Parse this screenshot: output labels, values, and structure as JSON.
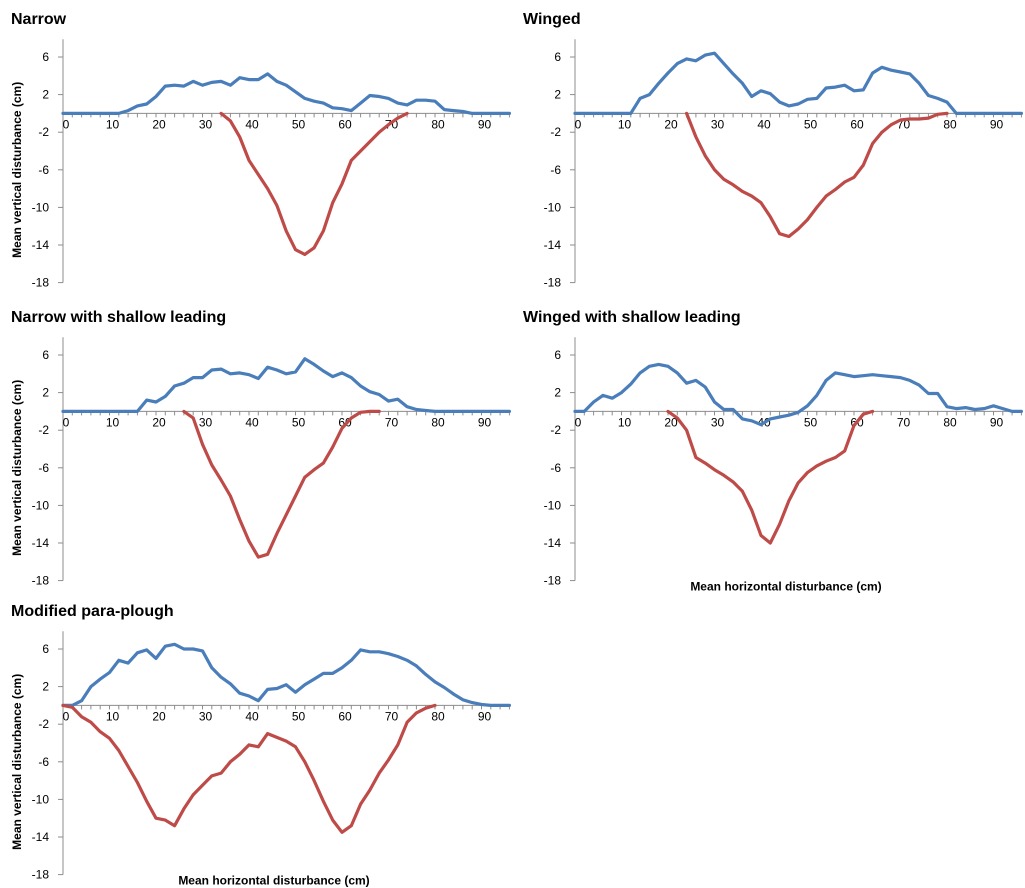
{
  "chart_data": [
    {
      "type": "line",
      "title": "Narrow",
      "ylabel": "Mean vertical disturbance (cm)",
      "xlabel": "",
      "xlim": [
        0,
        96
      ],
      "ylim": [
        -18,
        8
      ],
      "xticks": [
        0,
        10,
        20,
        30,
        40,
        50,
        60,
        70,
        80,
        90
      ],
      "yticks": [
        6,
        2,
        -2,
        -6,
        -10,
        -14,
        -18
      ],
      "series": [
        {
          "color": "#4a7ebb",
          "x": [
            0,
            2,
            4,
            6,
            8,
            10,
            12,
            14,
            16,
            18,
            20,
            22,
            24,
            26,
            28,
            30,
            32,
            34,
            36,
            38,
            40,
            42,
            44,
            46,
            48,
            50,
            52,
            54,
            56,
            58,
            60,
            62,
            64,
            66,
            68,
            70,
            72,
            74,
            76,
            78,
            80,
            82,
            84,
            86,
            88,
            90,
            92,
            94,
            96
          ],
          "y": [
            0,
            0,
            0,
            0,
            0,
            0,
            0,
            0.3,
            0.8,
            1.0,
            1.8,
            2.9,
            3.0,
            2.9,
            3.4,
            3.0,
            3.3,
            3.4,
            3.0,
            3.8,
            3.6,
            3.6,
            4.2,
            3.4,
            3.0,
            2.3,
            1.6,
            1.3,
            1.1,
            0.6,
            0.5,
            0.3,
            1.1,
            1.9,
            1.8,
            1.6,
            1.1,
            0.9,
            1.4,
            1.4,
            1.3,
            0.4,
            0.3,
            0.2,
            0,
            0,
            0,
            0,
            0
          ]
        },
        {
          "color": "#be4b48",
          "x": [
            34,
            36,
            38,
            40,
            42,
            44,
            46,
            48,
            50,
            52,
            54,
            56,
            58,
            60,
            62,
            64,
            66,
            68,
            70,
            72,
            74
          ],
          "y": [
            0,
            -0.8,
            -2.5,
            -5.0,
            -6.5,
            -8.0,
            -9.8,
            -12.5,
            -14.5,
            -15.0,
            -14.3,
            -12.5,
            -9.5,
            -7.5,
            -5.0,
            -4.0,
            -3.0,
            -2.0,
            -1.2,
            -0.5,
            0
          ]
        }
      ]
    },
    {
      "type": "line",
      "title": "Winged",
      "ylabel": "",
      "xlabel": "",
      "xlim": [
        0,
        96
      ],
      "ylim": [
        -18,
        8
      ],
      "xticks": [
        0,
        10,
        20,
        30,
        40,
        50,
        60,
        70,
        80,
        90
      ],
      "yticks": [
        6,
        2,
        -2,
        -6,
        -10,
        -14,
        -18
      ],
      "series": [
        {
          "color": "#4a7ebb",
          "x": [
            0,
            2,
            4,
            6,
            8,
            10,
            12,
            14,
            16,
            18,
            20,
            22,
            24,
            26,
            28,
            30,
            32,
            34,
            36,
            38,
            40,
            42,
            44,
            46,
            48,
            50,
            52,
            54,
            56,
            58,
            60,
            62,
            64,
            66,
            68,
            70,
            72,
            74,
            76,
            78,
            80,
            82,
            84,
            86,
            88,
            90,
            92,
            94,
            96
          ],
          "y": [
            0,
            0,
            0,
            0,
            0,
            0,
            0,
            1.6,
            2.0,
            3.2,
            4.3,
            5.3,
            5.8,
            5.6,
            6.2,
            6.4,
            5.3,
            4.2,
            3.2,
            1.8,
            2.4,
            2.1,
            1.2,
            0.8,
            1.0,
            1.5,
            1.6,
            2.7,
            2.8,
            3.0,
            2.4,
            2.5,
            4.3,
            4.9,
            4.6,
            4.4,
            4.2,
            3.2,
            1.9,
            1.6,
            1.2,
            0,
            0,
            0,
            0,
            0,
            0,
            0,
            0
          ]
        },
        {
          "color": "#be4b48",
          "x": [
            24,
            26,
            28,
            30,
            32,
            34,
            36,
            38,
            40,
            42,
            44,
            46,
            48,
            50,
            52,
            54,
            56,
            58,
            60,
            62,
            64,
            66,
            68,
            70,
            72,
            74,
            76,
            78,
            80
          ],
          "y": [
            0,
            -2.5,
            -4.5,
            -6.0,
            -7.0,
            -7.6,
            -8.3,
            -8.8,
            -9.5,
            -11.0,
            -12.8,
            -13.1,
            -12.3,
            -11.3,
            -10.0,
            -8.8,
            -8.1,
            -7.3,
            -6.8,
            -5.5,
            -3.2,
            -2.0,
            -1.2,
            -0.7,
            -0.6,
            -0.6,
            -0.5,
            -0.1,
            0
          ]
        }
      ]
    },
    {
      "type": "line",
      "title": "Narrow with shallow leading",
      "ylabel": "Mean vertical disturbance (cm)",
      "xlabel": "",
      "xlim": [
        0,
        96
      ],
      "ylim": [
        -18,
        8
      ],
      "xticks": [
        0,
        10,
        20,
        30,
        40,
        50,
        60,
        70,
        80,
        90
      ],
      "yticks": [
        6,
        2,
        -2,
        -6,
        -10,
        -14,
        -18
      ],
      "series": [
        {
          "color": "#4a7ebb",
          "x": [
            0,
            2,
            4,
            6,
            8,
            10,
            12,
            14,
            16,
            18,
            20,
            22,
            24,
            26,
            28,
            30,
            32,
            34,
            36,
            38,
            40,
            42,
            44,
            46,
            48,
            50,
            52,
            54,
            56,
            58,
            60,
            62,
            64,
            66,
            68,
            70,
            72,
            74,
            76,
            78,
            80,
            82,
            84,
            86,
            88,
            90,
            92,
            94,
            96
          ],
          "y": [
            0,
            0,
            0,
            0,
            0,
            0,
            0,
            0,
            0,
            1.2,
            1.0,
            1.6,
            2.7,
            3.0,
            3.6,
            3.6,
            4.4,
            4.5,
            4.0,
            4.1,
            3.9,
            3.5,
            4.7,
            4.4,
            4.0,
            4.2,
            5.6,
            5.0,
            4.3,
            3.7,
            4.1,
            3.6,
            2.7,
            2.1,
            1.8,
            1.1,
            1.3,
            0.5,
            0.2,
            0.1,
            0,
            0,
            0,
            0,
            0,
            0,
            0,
            0,
            0
          ]
        },
        {
          "color": "#be4b48",
          "x": [
            26,
            28,
            30,
            32,
            34,
            36,
            38,
            40,
            42,
            44,
            46,
            48,
            50,
            52,
            54,
            56,
            58,
            60,
            62,
            64,
            66,
            68
          ],
          "y": [
            0,
            -0.7,
            -3.5,
            -5.7,
            -7.3,
            -9.0,
            -11.5,
            -13.8,
            -15.5,
            -15.2,
            -13.0,
            -11.0,
            -9.0,
            -7.0,
            -6.2,
            -5.5,
            -3.8,
            -1.8,
            -0.7,
            -0.1,
            0,
            0
          ]
        }
      ]
    },
    {
      "type": "line",
      "title": "Winged with shallow leading",
      "ylabel": "",
      "xlabel": "Mean horizontal disturbance (cm)",
      "xlim": [
        0,
        96
      ],
      "ylim": [
        -18,
        8
      ],
      "xticks": [
        0,
        10,
        20,
        30,
        40,
        50,
        60,
        70,
        80,
        90
      ],
      "yticks": [
        6,
        2,
        -2,
        -6,
        -10,
        -14,
        -18
      ],
      "series": [
        {
          "color": "#4a7ebb",
          "x": [
            0,
            2,
            4,
            6,
            8,
            10,
            12,
            14,
            16,
            18,
            20,
            22,
            24,
            26,
            28,
            30,
            32,
            34,
            36,
            38,
            40,
            42,
            44,
            46,
            48,
            50,
            52,
            54,
            56,
            58,
            60,
            62,
            64,
            66,
            68,
            70,
            72,
            74,
            76,
            78,
            80,
            82,
            84,
            86,
            88,
            90,
            92,
            94,
            96
          ],
          "y": [
            0,
            0,
            1.0,
            1.7,
            1.4,
            2.0,
            2.9,
            4.1,
            4.8,
            5.0,
            4.8,
            4.1,
            3.0,
            3.3,
            2.6,
            1.0,
            0.2,
            0.2,
            -0.8,
            -1.0,
            -1.4,
            -0.8,
            -0.6,
            -0.4,
            -0.1,
            0.6,
            1.7,
            3.3,
            4.1,
            3.9,
            3.7,
            3.8,
            3.9,
            3.8,
            3.7,
            3.6,
            3.3,
            2.8,
            1.9,
            1.9,
            0.5,
            0.3,
            0.4,
            0.2,
            0.3,
            0.6,
            0.3,
            0,
            0
          ]
        },
        {
          "color": "#be4b48",
          "x": [
            20,
            22,
            24,
            26,
            28,
            30,
            32,
            34,
            36,
            38,
            40,
            42,
            44,
            46,
            48,
            50,
            52,
            54,
            56,
            58,
            60,
            62,
            64
          ],
          "y": [
            0,
            -0.7,
            -2.0,
            -4.9,
            -5.5,
            -6.2,
            -6.8,
            -7.5,
            -8.5,
            -10.5,
            -13.2,
            -14.0,
            -12.0,
            -9.5,
            -7.6,
            -6.5,
            -5.8,
            -5.3,
            -4.9,
            -4.2,
            -1.5,
            -0.3,
            0
          ]
        }
      ]
    },
    {
      "type": "line",
      "title": "Modified para-plough",
      "ylabel": "Mean vertical disturbance (cm)",
      "xlabel": "Mean horizontal disturbance (cm)",
      "xlim": [
        0,
        96
      ],
      "ylim": [
        -18,
        8
      ],
      "xticks": [
        0,
        10,
        20,
        30,
        40,
        50,
        60,
        70,
        80,
        90
      ],
      "yticks": [
        6,
        2,
        -2,
        -6,
        -10,
        -14,
        -18
      ],
      "series": [
        {
          "color": "#4a7ebb",
          "x": [
            0,
            2,
            4,
            6,
            8,
            10,
            12,
            14,
            16,
            18,
            20,
            22,
            24,
            26,
            28,
            30,
            32,
            34,
            36,
            38,
            40,
            42,
            44,
            46,
            48,
            50,
            52,
            54,
            56,
            58,
            60,
            62,
            64,
            66,
            68,
            70,
            72,
            74,
            76,
            78,
            80,
            82,
            84,
            86,
            88,
            90,
            92,
            94,
            96
          ],
          "y": [
            0,
            0,
            0.5,
            2.0,
            2.8,
            3.5,
            4.8,
            4.5,
            5.6,
            5.9,
            5.0,
            6.3,
            6.5,
            6.0,
            6.0,
            5.8,
            4.0,
            3.0,
            2.3,
            1.3,
            1.0,
            0.5,
            1.7,
            1.8,
            2.2,
            1.4,
            2.2,
            2.8,
            3.4,
            3.4,
            4.0,
            4.8,
            5.9,
            5.7,
            5.7,
            5.5,
            5.2,
            4.8,
            4.2,
            3.3,
            2.5,
            1.9,
            1.2,
            0.6,
            0.3,
            0.1,
            0,
            0,
            0
          ]
        },
        {
          "color": "#be4b48",
          "x": [
            0,
            2,
            4,
            6,
            8,
            10,
            12,
            14,
            16,
            18,
            20,
            22,
            24,
            26,
            28,
            30,
            32,
            34,
            36,
            38,
            40,
            42,
            44,
            46,
            48,
            50,
            52,
            54,
            56,
            58,
            60,
            62,
            64,
            66,
            68,
            70,
            72,
            74,
            76,
            78,
            80
          ],
          "y": [
            0,
            -0.2,
            -1.2,
            -1.8,
            -2.8,
            -3.5,
            -4.8,
            -6.5,
            -8.2,
            -10.2,
            -12.0,
            -12.2,
            -12.8,
            -11.0,
            -9.5,
            -8.5,
            -7.5,
            -7.2,
            -6.0,
            -5.2,
            -4.2,
            -4.4,
            -3.0,
            -3.4,
            -3.8,
            -4.4,
            -6.0,
            -8.0,
            -10.2,
            -12.2,
            -13.5,
            -12.8,
            -10.5,
            -9.0,
            -7.2,
            -5.8,
            -4.2,
            -1.8,
            -0.8,
            -0.3,
            0
          ]
        }
      ]
    }
  ]
}
